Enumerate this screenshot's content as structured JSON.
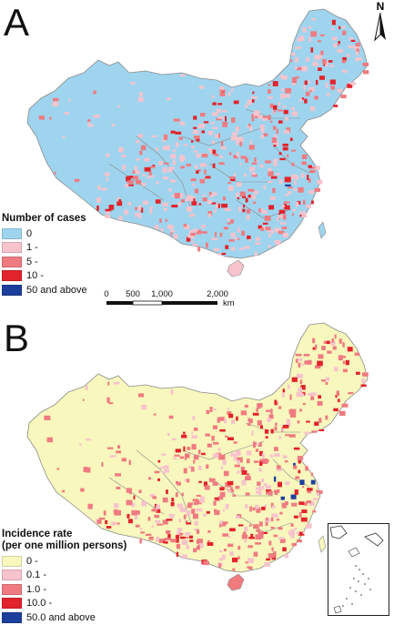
{
  "panel_a": {
    "letter": "A",
    "north_label": "N",
    "legend": {
      "title": "Number of cases",
      "items": [
        {
          "label": "0",
          "color": "#9fd4ee"
        },
        {
          "label": "1 -",
          "color": "#f7c3cc"
        },
        {
          "label": "5 -",
          "color": "#ef7b80"
        },
        {
          "label": "10 -",
          "color": "#e2232b"
        },
        {
          "label": "50 and above",
          "color": "#1c3f9c"
        }
      ]
    },
    "scale": {
      "ticks": [
        "0",
        "500",
        "1,000",
        "2,000"
      ],
      "unit": "km"
    }
  },
  "panel_b": {
    "letter": "B",
    "legend": {
      "title_line1": "Incidence rate",
      "title_line2": "(per one million persons)",
      "items": [
        {
          "label": "0 -",
          "color": "#f8f7bd"
        },
        {
          "label": "0.1 -",
          "color": "#f7c3cc"
        },
        {
          "label": "1.0 -",
          "color": "#ef7b80"
        },
        {
          "label": "10.0 -",
          "color": "#e2232b"
        },
        {
          "label": "50.0 and above",
          "color": "#1c3f9c"
        }
      ]
    }
  },
  "colors": {
    "border": "#8a8a8a",
    "sea": "#ffffff"
  }
}
